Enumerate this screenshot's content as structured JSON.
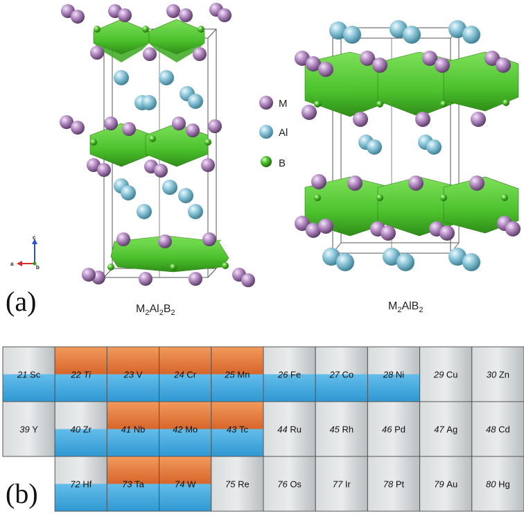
{
  "panel_a": {
    "label": "(a)",
    "structure_left": {
      "formula_parts": [
        "M",
        "2",
        "Al",
        "2",
        "B",
        "2"
      ]
    },
    "structure_right": {
      "formula_parts": [
        "M",
        "2",
        "AlB",
        "2"
      ]
    },
    "legend": [
      {
        "symbol": "M",
        "color": "#b58cc4"
      },
      {
        "symbol": "Al",
        "color": "#8cc7da"
      },
      {
        "symbol": "B",
        "color": "#4dc02a"
      }
    ],
    "axes": {
      "c": "c",
      "a": "a",
      "b": "b"
    }
  },
  "panel_b": {
    "label": "(b)",
    "colors": {
      "orange": "#e8793a",
      "blue": "#3fa9e0",
      "gray": "#c9cdcf"
    },
    "rows": [
      [
        {
          "num": "21",
          "sym": "Sc",
          "orange": false,
          "blue": true,
          "italic_sym": false
        },
        {
          "num": "22",
          "sym": "Ti",
          "orange": true,
          "blue": true,
          "italic_sym": true
        },
        {
          "num": "23",
          "sym": "V",
          "orange": true,
          "blue": true,
          "italic_sym": false
        },
        {
          "num": "24",
          "sym": "Cr",
          "orange": true,
          "blue": true,
          "italic_sym": false
        },
        {
          "num": "25",
          "sym": "Mn",
          "orange": true,
          "blue": true,
          "italic_sym": false
        },
        {
          "num": "26",
          "sym": "Fe",
          "orange": false,
          "blue": true,
          "italic_sym": false
        },
        {
          "num": "27",
          "sym": "Co",
          "orange": false,
          "blue": true,
          "italic_sym": false
        },
        {
          "num": "28",
          "sym": "Ni",
          "orange": false,
          "blue": true,
          "italic_sym": false
        },
        {
          "num": "29",
          "sym": "Cu",
          "orange": false,
          "blue": false,
          "italic_sym": false
        },
        {
          "num": "30",
          "sym": "Zn",
          "orange": false,
          "blue": false,
          "italic_sym": false
        }
      ],
      [
        {
          "num": "39",
          "sym": "Y",
          "orange": false,
          "blue": false,
          "italic_sym": false
        },
        {
          "num": "40",
          "sym": "Zr",
          "orange": false,
          "blue": true,
          "italic_sym": false
        },
        {
          "num": "41",
          "sym": "Nb",
          "orange": true,
          "blue": true,
          "italic_sym": false
        },
        {
          "num": "42",
          "sym": "Mo",
          "orange": true,
          "blue": true,
          "italic_sym": false
        },
        {
          "num": "43",
          "sym": "Tc",
          "orange": true,
          "blue": true,
          "italic_sym": false
        },
        {
          "num": "44",
          "sym": "Ru",
          "orange": false,
          "blue": false,
          "italic_sym": false
        },
        {
          "num": "45",
          "sym": "Rh",
          "orange": false,
          "blue": false,
          "italic_sym": false
        },
        {
          "num": "46",
          "sym": "Pd",
          "orange": false,
          "blue": false,
          "italic_sym": false
        },
        {
          "num": "47",
          "sym": "Ag",
          "orange": false,
          "blue": false,
          "italic_sym": false
        },
        {
          "num": "48",
          "sym": "Cd",
          "orange": false,
          "blue": false,
          "italic_sym": false
        }
      ],
      [
        {
          "num": "72",
          "sym": "Hf",
          "orange": false,
          "blue": true,
          "italic_sym": false
        },
        {
          "num": "73",
          "sym": "Ta",
          "orange": true,
          "blue": true,
          "italic_sym": false
        },
        {
          "num": "74",
          "sym": "W",
          "orange": true,
          "blue": true,
          "italic_sym": false
        },
        {
          "num": "75",
          "sym": "Re",
          "orange": false,
          "blue": false,
          "italic_sym": false
        },
        {
          "num": "76",
          "sym": "Os",
          "orange": false,
          "blue": false,
          "italic_sym": false
        },
        {
          "num": "77",
          "sym": "Ir",
          "orange": false,
          "blue": false,
          "italic_sym": false
        },
        {
          "num": "78",
          "sym": "Pt",
          "orange": false,
          "blue": false,
          "italic_sym": false
        },
        {
          "num": "79",
          "sym": "Au",
          "orange": false,
          "blue": false,
          "italic_sym": false
        },
        {
          "num": "80",
          "sym": "Hg",
          "orange": false,
          "blue": false,
          "italic_sym": false
        }
      ]
    ]
  }
}
